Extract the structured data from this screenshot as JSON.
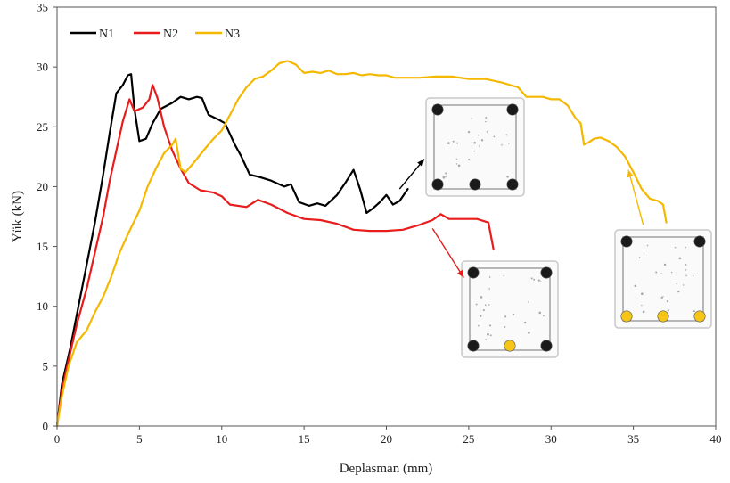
{
  "chart_data": {
    "type": "line",
    "title": "",
    "xlabel": "Deplasman (mm)",
    "ylabel": "Yük (kN)",
    "xlim": [
      0,
      40
    ],
    "ylim": [
      0,
      35
    ],
    "xticks": [
      0,
      5,
      10,
      15,
      20,
      25,
      30,
      35,
      40
    ],
    "yticks": [
      0,
      5,
      10,
      15,
      20,
      25,
      30,
      35
    ],
    "grid": false,
    "legend_position": "top-left",
    "series": [
      {
        "name": "N1",
        "color": "#000000",
        "points": [
          [
            0,
            0
          ],
          [
            0.3,
            3.5
          ],
          [
            0.8,
            6.5
          ],
          [
            1.3,
            10
          ],
          [
            1.8,
            13.5
          ],
          [
            2.3,
            17
          ],
          [
            2.8,
            21
          ],
          [
            3.2,
            24.5
          ],
          [
            3.6,
            27.8
          ],
          [
            4,
            28.5
          ],
          [
            4.3,
            29.3
          ],
          [
            4.5,
            29.4
          ],
          [
            4.7,
            26.5
          ],
          [
            5,
            23.8
          ],
          [
            5.4,
            24
          ],
          [
            5.8,
            25.3
          ],
          [
            6.3,
            26.5
          ],
          [
            7,
            27
          ],
          [
            7.5,
            27.5
          ],
          [
            8,
            27.3
          ],
          [
            8.5,
            27.5
          ],
          [
            8.8,
            27.4
          ],
          [
            9.2,
            26
          ],
          [
            9.8,
            25.6
          ],
          [
            10.2,
            25.3
          ],
          [
            10.8,
            23.5
          ],
          [
            11.2,
            22.5
          ],
          [
            11.7,
            21
          ],
          [
            12.3,
            20.8
          ],
          [
            13,
            20.5
          ],
          [
            13.8,
            20
          ],
          [
            14.2,
            20.2
          ],
          [
            14.7,
            18.7
          ],
          [
            15.3,
            18.4
          ],
          [
            15.8,
            18.6
          ],
          [
            16.3,
            18.4
          ],
          [
            17,
            19.3
          ],
          [
            17.5,
            20.3
          ],
          [
            18,
            21.4
          ],
          [
            18.4,
            19.8
          ],
          [
            18.8,
            17.8
          ],
          [
            19.2,
            18.2
          ],
          [
            19.6,
            18.7
          ],
          [
            20,
            19.3
          ],
          [
            20.4,
            18.5
          ],
          [
            20.8,
            18.8
          ],
          [
            21.3,
            19.8
          ]
        ]
      },
      {
        "name": "N2",
        "color": "#e81c1c",
        "points": [
          [
            0,
            0
          ],
          [
            0.3,
            3
          ],
          [
            0.7,
            5.5
          ],
          [
            1.2,
            8.5
          ],
          [
            1.8,
            11.5
          ],
          [
            2.3,
            14.5
          ],
          [
            2.8,
            17.5
          ],
          [
            3.2,
            20.5
          ],
          [
            3.6,
            23
          ],
          [
            4,
            25.5
          ],
          [
            4.4,
            27.3
          ],
          [
            4.7,
            26.3
          ],
          [
            5.2,
            26.6
          ],
          [
            5.6,
            27.3
          ],
          [
            5.8,
            28.5
          ],
          [
            6.1,
            27.4
          ],
          [
            6.5,
            25
          ],
          [
            7,
            23
          ],
          [
            7.5,
            21.5
          ],
          [
            8,
            20.3
          ],
          [
            8.7,
            19.7
          ],
          [
            9.5,
            19.5
          ],
          [
            10,
            19.2
          ],
          [
            10.5,
            18.5
          ],
          [
            11.5,
            18.3
          ],
          [
            12.2,
            18.9
          ],
          [
            13,
            18.5
          ],
          [
            14,
            17.8
          ],
          [
            15,
            17.3
          ],
          [
            16,
            17.2
          ],
          [
            17,
            16.9
          ],
          [
            18,
            16.4
          ],
          [
            19,
            16.3
          ],
          [
            20,
            16.3
          ],
          [
            21,
            16.4
          ],
          [
            22,
            16.8
          ],
          [
            22.8,
            17.2
          ],
          [
            23.3,
            17.7
          ],
          [
            23.8,
            17.3
          ],
          [
            24.5,
            17.3
          ],
          [
            25.5,
            17.3
          ],
          [
            26.2,
            17
          ],
          [
            26.5,
            14.8
          ]
        ]
      },
      {
        "name": "N3",
        "color": "#f5b800",
        "points": [
          [
            0,
            0
          ],
          [
            0.3,
            2.5
          ],
          [
            0.7,
            5
          ],
          [
            1.2,
            7
          ],
          [
            1.8,
            8
          ],
          [
            2.3,
            9.5
          ],
          [
            2.8,
            10.8
          ],
          [
            3.3,
            12.5
          ],
          [
            3.8,
            14.5
          ],
          [
            4.3,
            16
          ],
          [
            5,
            18
          ],
          [
            5.5,
            20
          ],
          [
            6,
            21.5
          ],
          [
            6.5,
            22.8
          ],
          [
            7,
            23.5
          ],
          [
            7.2,
            24
          ],
          [
            7.5,
            21.5
          ],
          [
            7.8,
            21.2
          ],
          [
            8.3,
            22
          ],
          [
            9,
            23.2
          ],
          [
            9.5,
            24
          ],
          [
            10,
            24.7
          ],
          [
            10.5,
            26
          ],
          [
            11,
            27.3
          ],
          [
            11.5,
            28.3
          ],
          [
            12,
            29
          ],
          [
            12.5,
            29.2
          ],
          [
            13,
            29.7
          ],
          [
            13.5,
            30.3
          ],
          [
            14,
            30.5
          ],
          [
            14.5,
            30.2
          ],
          [
            15,
            29.5
          ],
          [
            15.5,
            29.6
          ],
          [
            16,
            29.5
          ],
          [
            16.5,
            29.7
          ],
          [
            17,
            29.4
          ],
          [
            17.5,
            29.4
          ],
          [
            18,
            29.5
          ],
          [
            18.5,
            29.3
          ],
          [
            19,
            29.4
          ],
          [
            19.5,
            29.3
          ],
          [
            20,
            29.3
          ],
          [
            20.5,
            29.1
          ],
          [
            21,
            29.1
          ],
          [
            22,
            29.1
          ],
          [
            23,
            29.2
          ],
          [
            24,
            29.2
          ],
          [
            25,
            29
          ],
          [
            26,
            29
          ],
          [
            27,
            28.7
          ],
          [
            28,
            28.3
          ],
          [
            28.5,
            27.5
          ],
          [
            29,
            27.5
          ],
          [
            29.5,
            27.5
          ],
          [
            30,
            27.3
          ],
          [
            30.5,
            27.3
          ],
          [
            31,
            26.8
          ],
          [
            31.5,
            25.7
          ],
          [
            31.8,
            25.3
          ],
          [
            32,
            23.5
          ],
          [
            32.3,
            23.7
          ],
          [
            32.6,
            24
          ],
          [
            33,
            24.1
          ],
          [
            33.5,
            23.8
          ],
          [
            34,
            23.3
          ],
          [
            34.5,
            22.5
          ],
          [
            35,
            21.2
          ],
          [
            35.5,
            19.8
          ],
          [
            36,
            19
          ],
          [
            36.5,
            18.8
          ],
          [
            36.8,
            18.5
          ],
          [
            37,
            17
          ]
        ]
      }
    ],
    "annotations": [
      {
        "name": "section-n1",
        "arrow_color": "#000000",
        "arrow_from": [
          20.8,
          19.8
        ],
        "arrow_to": [
          22.3,
          22.3
        ],
        "bar_colors": [
          "#1a1a1a",
          "#1a1a1a",
          "#1a1a1a",
          "#1a1a1a",
          "#1a1a1a"
        ]
      },
      {
        "name": "section-n2",
        "arrow_color": "#e81c1c",
        "arrow_from": [
          22.8,
          16.5
        ],
        "arrow_to": [
          24.7,
          12.4
        ],
        "bar_colors": [
          "#1a1a1a",
          "#1a1a1a",
          "#1a1a1a",
          "#f5c518",
          "#1a1a1a"
        ]
      },
      {
        "name": "section-n3",
        "arrow_color": "#f5b800",
        "arrow_from": [
          35.6,
          16.8
        ],
        "arrow_to": [
          34.7,
          21.4
        ],
        "bar_colors": [
          "#1a1a1a",
          "#1a1a1a",
          "#f5c518",
          "#f5c518",
          "#f5c518"
        ]
      }
    ]
  }
}
